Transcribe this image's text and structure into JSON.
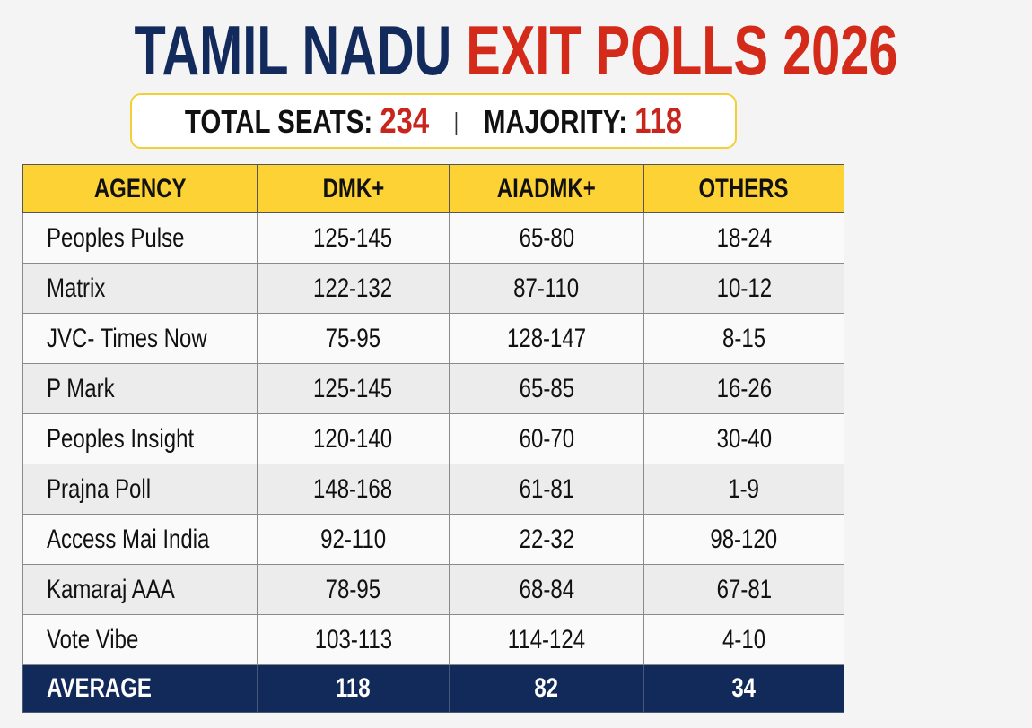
{
  "header": {
    "title_part1": "TAMIL NADU",
    "title_part2": "EXIT POLLS 2026",
    "total_seats_label": "TOTAL SEATS:",
    "total_seats_value": "234",
    "majority_label": "MAJORITY:",
    "majority_value": "118"
  },
  "colors": {
    "navy": "#132a5c",
    "red": "#d42a1a",
    "header_yellow": "#fcd234"
  },
  "chart_data": {
    "type": "table",
    "columns": [
      "AGENCY",
      "DMK+",
      "AIADMK+",
      "OTHERS"
    ],
    "rows": [
      [
        "Peoples Pulse",
        "125-145",
        "65-80",
        "18-24"
      ],
      [
        "Matrix",
        "122-132",
        "87-110",
        "10-12"
      ],
      [
        "JVC- Times Now",
        "75-95",
        "128-147",
        "8-15"
      ],
      [
        "P Mark",
        "125-145",
        "65-85",
        "16-26"
      ],
      [
        "Peoples Insight",
        "120-140",
        "60-70",
        "30-40"
      ],
      [
        "Prajna Poll",
        "148-168",
        "61-81",
        "1-9"
      ],
      [
        "Access Mai India",
        "92-110",
        "22-32",
        "98-120"
      ],
      [
        "Kamaraj AAA",
        "78-95",
        "68-84",
        "67-81"
      ],
      [
        "Vote Vibe",
        "103-113",
        "114-124",
        "4-10"
      ]
    ],
    "average": [
      "AVERAGE",
      "118",
      "82",
      "34"
    ]
  }
}
